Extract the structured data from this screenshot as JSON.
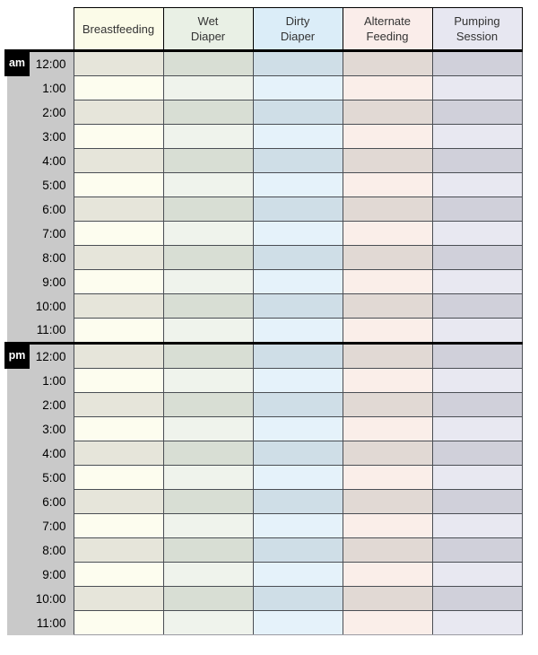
{
  "schedule_table": {
    "columns": [
      {
        "id": "breastfeeding",
        "label": "Breastfeeding",
        "header_bg": "#fbfbe8",
        "row_light": "#fdfdef",
        "row_dark": "#e6e5da"
      },
      {
        "id": "wet-diaper",
        "label": "Wet\nDiaper",
        "header_bg": "#e9f0e5",
        "row_light": "#eff3ec",
        "row_dark": "#d8ded4"
      },
      {
        "id": "dirty-diaper",
        "label": "Dirty\nDiaper",
        "header_bg": "#dbedf8",
        "row_light": "#e5f2fa",
        "row_dark": "#cfdee7"
      },
      {
        "id": "alternate-feeding",
        "label": "Alternate\nFeeding",
        "header_bg": "#faedea",
        "row_light": "#faeee9",
        "row_dark": "#e1d9d4"
      },
      {
        "id": "pumping-session",
        "label": "Pumping\nSession",
        "header_bg": "#e7e7f1",
        "row_light": "#e8e8f1",
        "row_dark": "#d0d0da"
      }
    ],
    "sections": [
      {
        "meridiem": "am",
        "times": [
          "12:00",
          "1:00",
          "2:00",
          "3:00",
          "4:00",
          "5:00",
          "6:00",
          "7:00",
          "8:00",
          "9:00",
          "10:00",
          "11:00"
        ]
      },
      {
        "meridiem": "pm",
        "times": [
          "12:00",
          "1:00",
          "2:00",
          "3:00",
          "4:00",
          "5:00",
          "6:00",
          "7:00",
          "8:00",
          "9:00",
          "10:00",
          "11:00"
        ]
      }
    ],
    "colors": {
      "time_column_bg": "#c9c9c9",
      "cell_border": "#4a4e54",
      "header_border": "#000000",
      "section_divider": "#000000",
      "bottom_border": "#9a9aa2",
      "badge_bg": "#000000",
      "badge_text": "#ffffff"
    }
  }
}
